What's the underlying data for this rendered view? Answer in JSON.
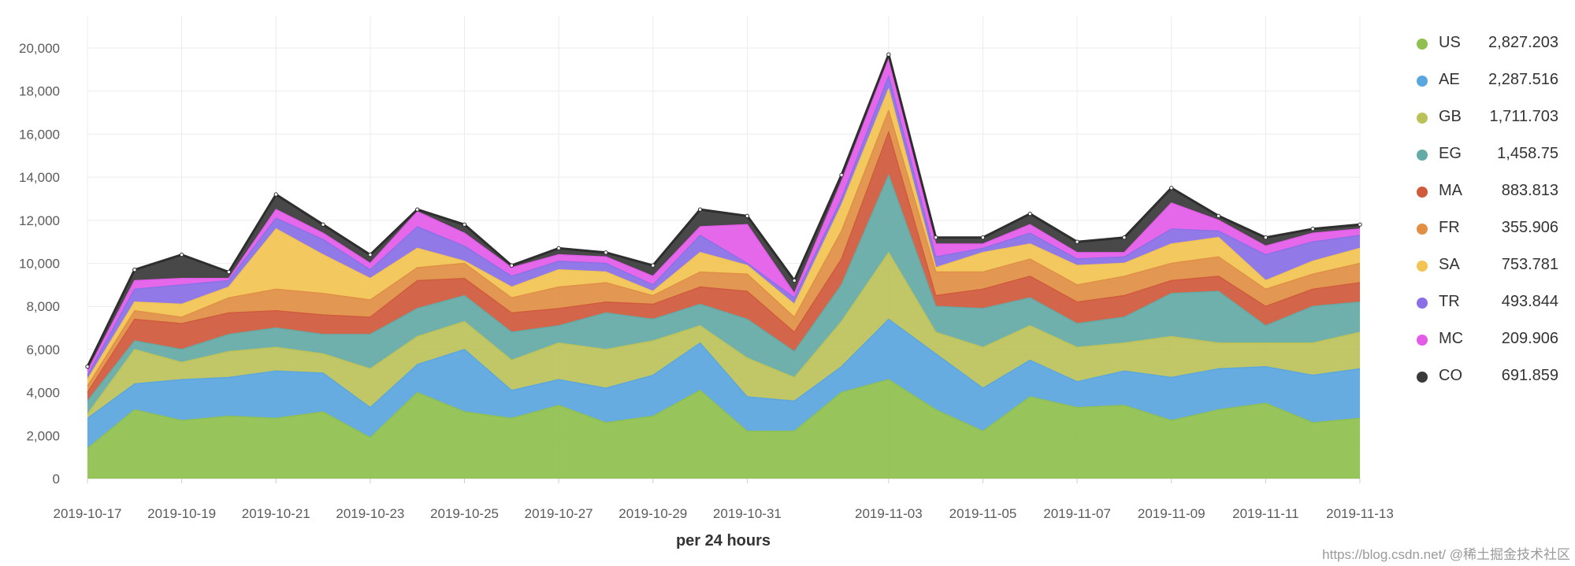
{
  "chart_data": {
    "type": "area",
    "stacked": true,
    "xlabel": "per 24 hours",
    "ylim": [
      0,
      21500
    ],
    "yticks": [
      0,
      2000,
      4000,
      6000,
      8000,
      10000,
      12000,
      14000,
      16000,
      18000,
      20000
    ],
    "ytick_labels": [
      "0",
      "2,000",
      "4,000",
      "6,000",
      "8,000",
      "10,000",
      "12,000",
      "14,000",
      "16,000",
      "18,000",
      "20,000"
    ],
    "x": [
      "2019-10-17",
      "2019-10-18",
      "2019-10-19",
      "2019-10-20",
      "2019-10-21",
      "2019-10-22",
      "2019-10-23",
      "2019-10-24",
      "2019-10-25",
      "2019-10-26",
      "2019-10-27",
      "2019-10-28",
      "2019-10-29",
      "2019-10-30",
      "2019-10-31",
      "2019-11-01",
      "2019-11-02",
      "2019-11-03",
      "2019-11-04",
      "2019-11-05",
      "2019-11-06",
      "2019-11-07",
      "2019-11-08",
      "2019-11-09",
      "2019-11-10",
      "2019-11-11",
      "2019-11-12",
      "2019-11-13"
    ],
    "xtick_labels": [
      {
        "index": 0,
        "label": "2019-10-17"
      },
      {
        "index": 2,
        "label": "2019-10-19"
      },
      {
        "index": 4,
        "label": "2019-10-21"
      },
      {
        "index": 6,
        "label": "2019-10-23"
      },
      {
        "index": 8,
        "label": "2019-10-25"
      },
      {
        "index": 10,
        "label": "2019-10-27"
      },
      {
        "index": 12,
        "label": "2019-10-29"
      },
      {
        "index": 14,
        "label": "2019-10-31"
      },
      {
        "index": 17,
        "label": "2019-11-03"
      },
      {
        "index": 19,
        "label": "2019-11-05"
      },
      {
        "index": 21,
        "label": "2019-11-07"
      },
      {
        "index": 23,
        "label": "2019-11-09"
      },
      {
        "index": 25,
        "label": "2019-11-11"
      },
      {
        "index": 27,
        "label": "2019-11-13"
      }
    ],
    "series": [
      {
        "name": "US",
        "legend_value": "2,827.203",
        "color": "#8fc04f",
        "values": [
          1400,
          3200,
          2700,
          2900,
          2800,
          3100,
          1900,
          4000,
          3100,
          2800,
          3400,
          2600,
          2900,
          4100,
          2200,
          2200,
          4000,
          4600,
          3200,
          2200,
          3800,
          3300,
          3400,
          2700,
          3200,
          3500,
          2600,
          2800
        ]
      },
      {
        "name": "AE",
        "legend_value": "2,287.516",
        "color": "#5aa6de",
        "values": [
          1400,
          1200,
          1900,
          1800,
          2200,
          1800,
          1400,
          1300,
          2900,
          1300,
          1200,
          1600,
          1900,
          2200,
          1600,
          1400,
          1200,
          2800,
          2600,
          2000,
          1700,
          1200,
          1600,
          2000,
          1900,
          1700,
          2200,
          2300
        ]
      },
      {
        "name": "GB",
        "legend_value": "1,711.703",
        "color": "#bcc25a",
        "values": [
          200,
          1600,
          800,
          1200,
          1100,
          900,
          1800,
          1300,
          1300,
          1400,
          1700,
          1800,
          1600,
          800,
          1800,
          1100,
          2100,
          3100,
          1000,
          1900,
          1600,
          1600,
          1300,
          1900,
          1200,
          1100,
          1500,
          1700
        ]
      },
      {
        "name": "EG",
        "legend_value": "1,458.75",
        "color": "#64aaa6",
        "values": [
          600,
          400,
          600,
          800,
          900,
          900,
          1600,
          1300,
          1200,
          1300,
          800,
          1700,
          1000,
          1000,
          1800,
          1200,
          1700,
          3600,
          1200,
          1800,
          1300,
          1100,
          1200,
          2000,
          2400,
          800,
          1700,
          1400
        ]
      },
      {
        "name": "MA",
        "legend_value": "883.813",
        "color": "#d05a3c",
        "values": [
          400,
          1000,
          1200,
          1000,
          800,
          900,
          800,
          1300,
          800,
          900,
          800,
          500,
          700,
          800,
          1300,
          900,
          1200,
          2000,
          500,
          900,
          1000,
          1000,
          1000,
          600,
          700,
          900,
          800,
          900
        ]
      },
      {
        "name": "FR",
        "legend_value": "355.906",
        "color": "#e08f45",
        "values": [
          300,
          400,
          300,
          700,
          1000,
          1000,
          800,
          600,
          700,
          700,
          1000,
          900,
          400,
          700,
          800,
          700,
          1300,
          1000,
          1100,
          800,
          800,
          800,
          900,
          800,
          900,
          800,
          700,
          900
        ]
      },
      {
        "name": "SA",
        "legend_value": "753.781",
        "color": "#f1c453",
        "values": [
          300,
          400,
          600,
          500,
          2800,
          1800,
          1000,
          900,
          100,
          500,
          800,
          500,
          200,
          900,
          400,
          600,
          1200,
          1000,
          200,
          900,
          700,
          900,
          600,
          900,
          900,
          400,
          600,
          700
        ]
      },
      {
        "name": "TR",
        "legend_value": "493.844",
        "color": "#8a6fe6",
        "values": [
          200,
          600,
          900,
          300,
          500,
          700,
          400,
          1000,
          700,
          500,
          400,
          400,
          300,
          800,
          100,
          300,
          300,
          600,
          500,
          200,
          500,
          300,
          300,
          700,
          300,
          1200,
          900,
          600
        ]
      },
      {
        "name": "MC",
        "legend_value": "209.906",
        "color": "#e35ce8",
        "values": [
          200,
          400,
          300,
          100,
          400,
          300,
          300,
          700,
          600,
          400,
          300,
          300,
          400,
          400,
          1800,
          200,
          800,
          800,
          600,
          200,
          400,
          300,
          200,
          1200,
          500,
          400,
          400,
          300
        ]
      },
      {
        "name": "CO",
        "legend_value": "691.859",
        "color": "#3a3a3a",
        "values": [
          200,
          500,
          1100,
          300,
          700,
          400,
          400,
          100,
          400,
          100,
          300,
          200,
          500,
          800,
          400,
          600,
          300,
          200,
          300,
          300,
          500,
          500,
          700,
          700,
          200,
          400,
          200,
          200
        ]
      }
    ]
  },
  "watermark": "https://blog.csdn.net/  @稀土掘金技术社区"
}
